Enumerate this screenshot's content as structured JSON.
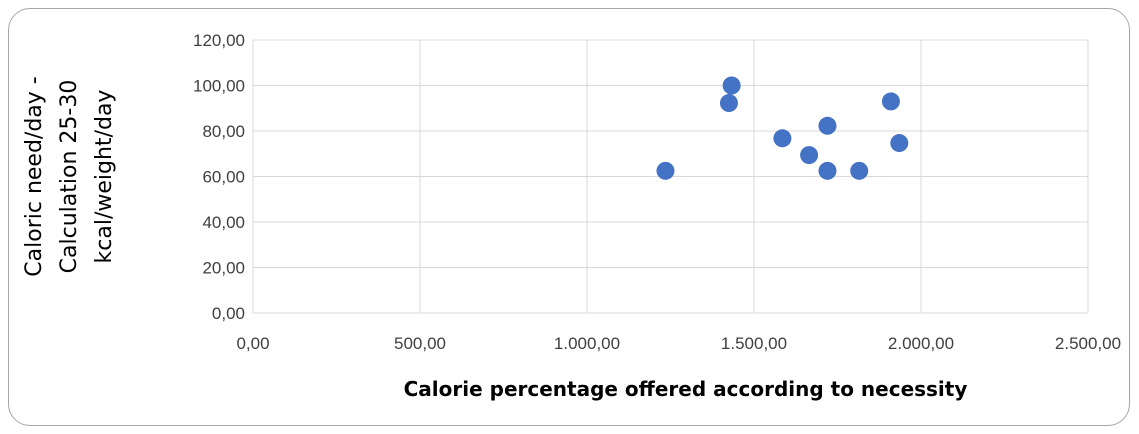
{
  "chart_data": {
    "type": "scatter",
    "title": "",
    "xlabel": "Calorie percentage offered according to necessity",
    "ylabel_lines": [
      "Caloric need/day -",
      "Calculation 25-30",
      "kcal/weight/day"
    ],
    "xlim": [
      0,
      2500
    ],
    "ylim": [
      0,
      120
    ],
    "x_ticks": [
      0,
      500,
      1000,
      1500,
      2000,
      2500
    ],
    "x_tick_labels": [
      "0,00",
      "500,00",
      "1.000,00",
      "1.500,00",
      "2.000,00",
      "2.500,00"
    ],
    "y_ticks": [
      0,
      20,
      40,
      60,
      80,
      100,
      120
    ],
    "y_tick_labels": [
      "0,00",
      "20,00",
      "40,00",
      "60,00",
      "80,00",
      "100,00",
      "120,00"
    ],
    "grid": true,
    "legend": "none",
    "series": [
      {
        "color": "#4472c4",
        "points": [
          {
            "x": 1235,
            "y": 62.5
          },
          {
            "x": 1425,
            "y": 92.3
          },
          {
            "x": 1433,
            "y": 100.0
          },
          {
            "x": 1585,
            "y": 76.8
          },
          {
            "x": 1665,
            "y": 69.4
          },
          {
            "x": 1720,
            "y": 82.3
          },
          {
            "x": 1720,
            "y": 62.5
          },
          {
            "x": 1815,
            "y": 62.5
          },
          {
            "x": 1910,
            "y": 93.0
          },
          {
            "x": 1935,
            "y": 74.7
          }
        ]
      }
    ]
  }
}
